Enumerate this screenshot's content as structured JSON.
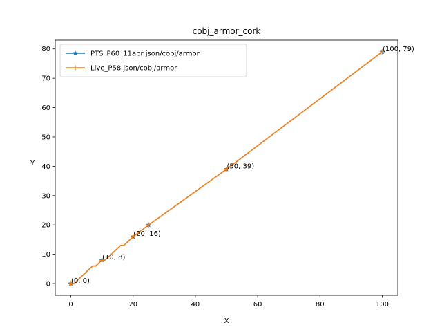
{
  "chart_data": {
    "type": "line",
    "title": "cobj_armor_cork",
    "xlabel": "X",
    "ylabel": "Y",
    "xlim": [
      -5,
      105
    ],
    "ylim": [
      -4,
      83
    ],
    "xticks": [
      0,
      20,
      40,
      60,
      80,
      100
    ],
    "yticks": [
      0,
      10,
      20,
      30,
      40,
      50,
      60,
      70,
      80
    ],
    "grid": false,
    "legend_position": "top-left",
    "series": [
      {
        "name": "PTS_P60_11apr json/cobj/armor",
        "color": "#1f77b4",
        "marker": "star",
        "x": [
          0,
          1,
          2,
          3,
          4,
          5,
          6,
          7,
          8,
          9,
          10,
          11,
          12,
          13,
          14,
          15,
          16,
          17,
          18,
          19,
          20,
          25,
          50,
          100
        ],
        "y": [
          0,
          0,
          1,
          2,
          3,
          4,
          5,
          6,
          6,
          7,
          8,
          8,
          9,
          10,
          11,
          12,
          13,
          13,
          14,
          15,
          16,
          20,
          39,
          79
        ],
        "marker_indices": [
          0,
          10,
          20,
          21,
          22,
          23
        ]
      },
      {
        "name": "Live_P58 json/cobj/armor",
        "color": "#ff7f0e",
        "marker": "plus",
        "x": [
          0,
          1,
          2,
          3,
          4,
          5,
          6,
          7,
          8,
          9,
          10,
          11,
          12,
          13,
          14,
          15,
          16,
          17,
          18,
          19,
          20,
          25,
          50,
          100
        ],
        "y": [
          0,
          0,
          1,
          2,
          3,
          4,
          5,
          6,
          6,
          7,
          8,
          8,
          9,
          10,
          11,
          12,
          13,
          13,
          14,
          15,
          16,
          20,
          39,
          79
        ],
        "marker_indices": [
          0,
          10,
          20,
          21,
          22,
          23
        ]
      }
    ],
    "annotations": [
      {
        "x": 0,
        "y": 0,
        "text": "(0, 0)"
      },
      {
        "x": 10,
        "y": 8,
        "text": "(10, 8)"
      },
      {
        "x": 20,
        "y": 16,
        "text": "(20, 16)"
      },
      {
        "x": 50,
        "y": 39,
        "text": "(50, 39)"
      },
      {
        "x": 100,
        "y": 79,
        "text": "(100, 79)"
      }
    ]
  }
}
